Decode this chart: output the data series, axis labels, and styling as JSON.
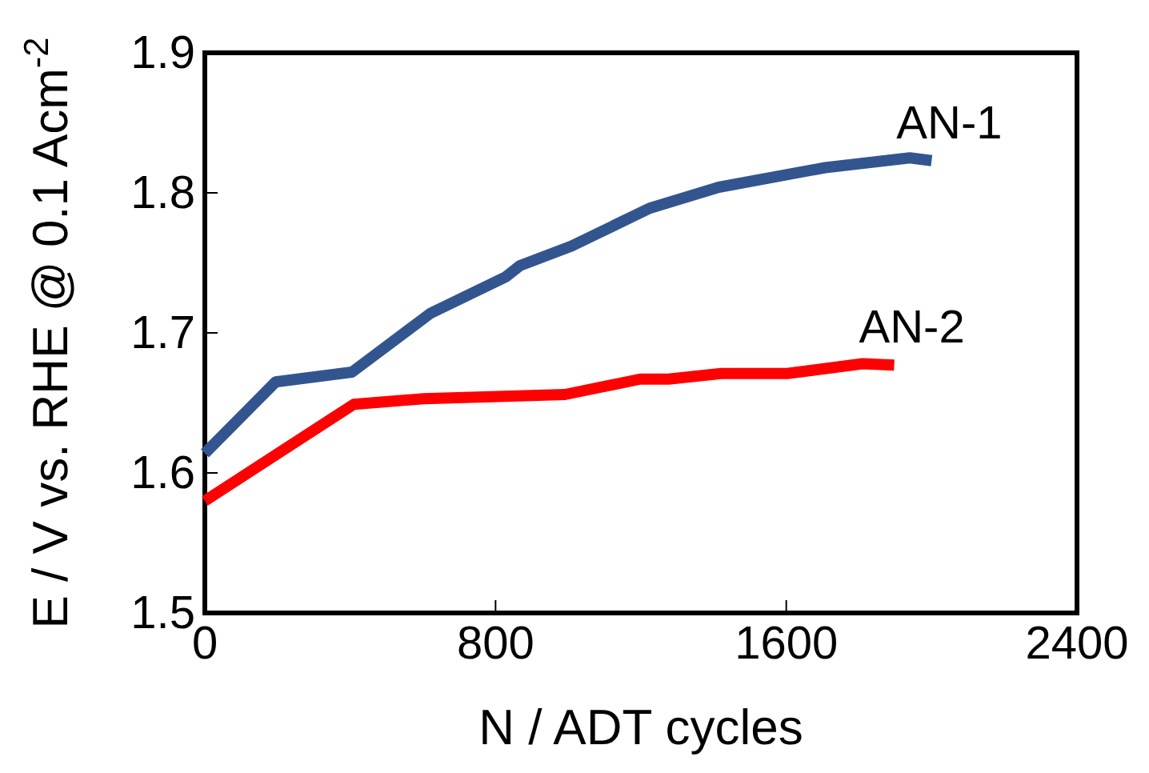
{
  "chart_data": {
    "type": "line",
    "xlabel": "N / ADT cycles",
    "ylabel": "E / V vs. RHE @ 0.1 Acm$^{-2}$",
    "xlim": [
      0,
      2400
    ],
    "xticks": [
      0,
      800,
      1600,
      2400
    ],
    "ylim": [
      1.5,
      1.9
    ],
    "yticks": [
      1.5,
      1.6,
      1.7,
      1.8,
      1.9
    ],
    "grid": false,
    "legend": false,
    "line_style": "solid",
    "marker": "none",
    "series": [
      {
        "name": "AN-1",
        "color": "#33558f",
        "x": [
          0,
          195,
          405,
          621,
          828,
          867,
          1009,
          1224,
          1414,
          1707,
          1940,
          2000
        ],
        "values": [
          1.614,
          1.665,
          1.672,
          1.714,
          1.74,
          1.748,
          1.762,
          1.789,
          1.804,
          1.818,
          1.825,
          1.823
        ]
      },
      {
        "name": "AN-2",
        "color": "#ff0000",
        "x": [
          0,
          410,
          603,
          991,
          1198,
          1276,
          1421,
          1603,
          1810,
          1897
        ],
        "values": [
          1.58,
          1.649,
          1.653,
          1.656,
          1.667,
          1.667,
          1.671,
          1.671,
          1.678,
          1.677
        ]
      }
    ]
  }
}
